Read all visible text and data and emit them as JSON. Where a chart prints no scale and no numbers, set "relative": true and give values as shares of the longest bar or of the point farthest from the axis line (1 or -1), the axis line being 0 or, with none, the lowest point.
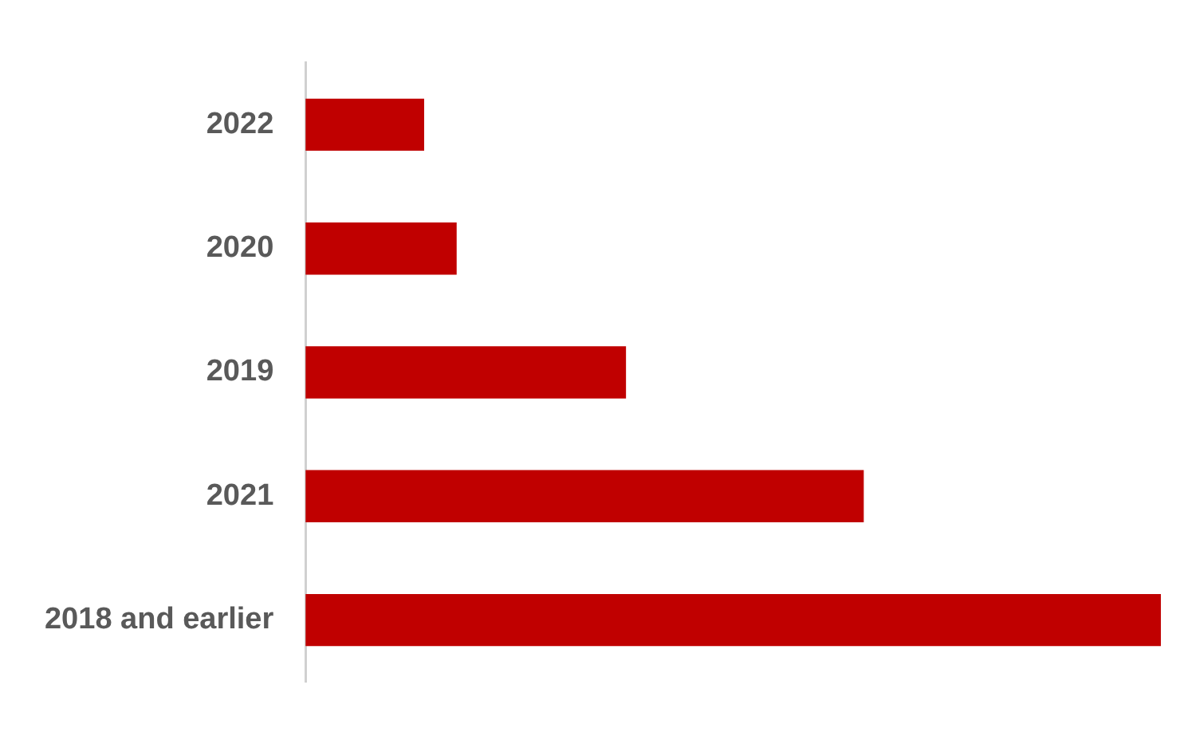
{
  "chart_data": {
    "type": "bar",
    "orientation": "horizontal",
    "relative": true,
    "categories": [
      "2022",
      "2020",
      "2019",
      "2021",
      "2018 and earlier"
    ],
    "values": [
      0.138,
      0.176,
      0.374,
      0.652,
      1
    ],
    "color": "#c00000",
    "grid": false,
    "legend": false
  }
}
